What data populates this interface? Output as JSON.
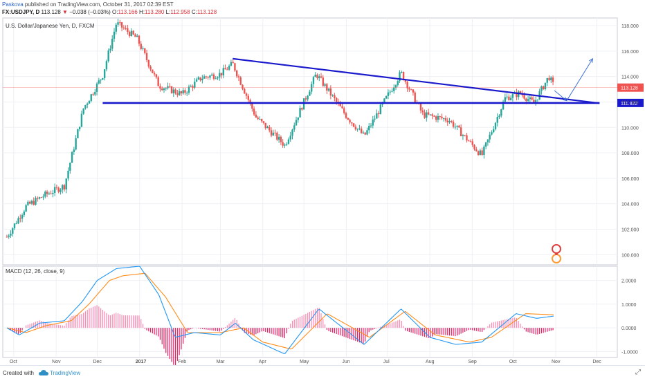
{
  "header": {
    "author": "Paskova",
    "published": "published on TradingView.com, October 31, 2017 02:39 EST",
    "symbol_line": "FX:USDJPY, D",
    "last_price": "113.128",
    "change_arrow": "▼",
    "change": "−0.038 (−0.03%)",
    "open_label": "O:",
    "open": "113.166",
    "high_label": "H:",
    "high": "113.280",
    "low_label": "L:",
    "low": "112.958",
    "close_label": "C:",
    "close": "113.128"
  },
  "footer": {
    "created_with": "Created with",
    "brand": "TradingView",
    "expand_icon": "expand-icon"
  },
  "colors": {
    "up": "#26a69a",
    "down": "#ef5350",
    "trendline": "#1a1acc",
    "price_label": "#ef5350",
    "support_label": "#1a1acc",
    "macd_line": "#2196f3",
    "signal_line": "#ff8c1a",
    "hist_up": "#ff86b0",
    "hist_down": "#e91e63"
  },
  "chart_data": [
    {
      "type": "candlestick",
      "title": "U.S. Dollar/Japanese Yen, D, FXCM",
      "ylim": [
        99.2,
        118.6
      ],
      "y_ticks": [
        "118.000",
        "116.000",
        "114.000",
        "112.000",
        "110.000",
        "108.000",
        "106.000",
        "104.000",
        "102.000",
        "100.000"
      ],
      "x_ticks": [
        "Oct",
        "Nov",
        "Dec",
        "2017",
        "Feb",
        "Mar",
        "Apr",
        "May",
        "Jun",
        "Jul",
        "Aug",
        "Sep",
        "Oct",
        "Nov",
        "Dec"
      ],
      "current_price": "113.128",
      "support_level": "111.922",
      "series": [
        {
          "date": "2016-09-26",
          "value": 101.4
        },
        {
          "date": "2016-10-10",
          "value": 103.8
        },
        {
          "date": "2016-10-24",
          "value": 104.7
        },
        {
          "date": "2016-11-07",
          "value": 105.4
        },
        {
          "date": "2016-11-21",
          "value": 111.5
        },
        {
          "date": "2016-12-05",
          "value": 114.1
        },
        {
          "date": "2016-12-15",
          "value": 118.2
        },
        {
          "date": "2016-12-30",
          "value": 117.0
        },
        {
          "date": "2017-01-15",
          "value": 113.3
        },
        {
          "date": "2017-02-01",
          "value": 112.6
        },
        {
          "date": "2017-02-15",
          "value": 113.9
        },
        {
          "date": "2017-03-01",
          "value": 114.2
        },
        {
          "date": "2017-03-10",
          "value": 115.0
        },
        {
          "date": "2017-03-27",
          "value": 110.8
        },
        {
          "date": "2017-04-17",
          "value": 108.6
        },
        {
          "date": "2017-05-10",
          "value": 114.2
        },
        {
          "date": "2017-06-01",
          "value": 110.9
        },
        {
          "date": "2017-06-14",
          "value": 109.3
        },
        {
          "date": "2017-07-11",
          "value": 114.3
        },
        {
          "date": "2017-07-27",
          "value": 111.0
        },
        {
          "date": "2017-08-15",
          "value": 110.6
        },
        {
          "date": "2017-09-08",
          "value": 107.8
        },
        {
          "date": "2017-09-25",
          "value": 112.3
        },
        {
          "date": "2017-10-06",
          "value": 112.7
        },
        {
          "date": "2017-10-16",
          "value": 111.9
        },
        {
          "date": "2017-10-27",
          "value": 114.0
        },
        {
          "date": "2017-10-31",
          "value": 113.13
        }
      ],
      "annotations": {
        "resistance_trendline": [
          {
            "date": "2017-03-10",
            "value": 115.4
          },
          {
            "date": "2017-12-03",
            "value": 111.9
          }
        ],
        "support_line": {
          "from": "2016-12-05",
          "to": "2017-12-03",
          "value": 111.922
        },
        "projection_arrows": [
          {
            "from": {
              "date": "2017-10-31",
              "value": 112.9
            },
            "to": {
              "date": "2017-11-09",
              "value": 112.1
            }
          },
          {
            "from": {
              "date": "2017-11-09",
              "value": 112.1
            },
            "to": {
              "date": "2017-11-28",
              "value": 115.4
            }
          }
        ]
      }
    },
    {
      "type": "line",
      "title": "MACD (12, 26, close, 9)",
      "ylim": [
        -1.25,
        2.6
      ],
      "y_ticks": [
        "2.0000",
        "1.0000",
        "0.0000",
        "-1.0000"
      ],
      "series": [
        {
          "name": "MACD",
          "points": [
            {
              "date": "2016-09-26",
              "value": 0.0
            },
            {
              "date": "2016-10-05",
              "value": -0.3
            },
            {
              "date": "2016-10-20",
              "value": 0.2
            },
            {
              "date": "2016-11-07",
              "value": 0.3
            },
            {
              "date": "2016-11-20",
              "value": 1.1
            },
            {
              "date": "2016-12-01",
              "value": 2.0
            },
            {
              "date": "2016-12-15",
              "value": 2.5
            },
            {
              "date": "2017-01-01",
              "value": 2.6
            },
            {
              "date": "2017-01-15",
              "value": 1.4
            },
            {
              "date": "2017-01-27",
              "value": -0.4
            },
            {
              "date": "2017-02-10",
              "value": -0.2
            },
            {
              "date": "2017-03-01",
              "value": -0.3
            },
            {
              "date": "2017-03-12",
              "value": 0.2
            },
            {
              "date": "2017-03-25",
              "value": -0.5
            },
            {
              "date": "2017-04-17",
              "value": -1.1
            },
            {
              "date": "2017-05-12",
              "value": 0.8
            },
            {
              "date": "2017-06-14",
              "value": -0.7
            },
            {
              "date": "2017-07-11",
              "value": 0.8
            },
            {
              "date": "2017-08-01",
              "value": -0.4
            },
            {
              "date": "2017-08-20",
              "value": -0.7
            },
            {
              "date": "2017-09-08",
              "value": -0.6
            },
            {
              "date": "2017-10-03",
              "value": 0.6
            },
            {
              "date": "2017-10-18",
              "value": 0.4
            },
            {
              "date": "2017-10-31",
              "value": 0.5
            }
          ]
        },
        {
          "name": "Signal",
          "points": [
            {
              "date": "2016-09-26",
              "value": 0.0
            },
            {
              "date": "2016-10-10",
              "value": -0.2
            },
            {
              "date": "2016-10-25",
              "value": 0.1
            },
            {
              "date": "2016-11-12",
              "value": 0.3
            },
            {
              "date": "2016-11-25",
              "value": 1.0
            },
            {
              "date": "2016-12-10",
              "value": 2.0
            },
            {
              "date": "2016-12-20",
              "value": 2.2
            },
            {
              "date": "2017-01-05",
              "value": 2.3
            },
            {
              "date": "2017-01-20",
              "value": 1.3
            },
            {
              "date": "2017-02-05",
              "value": -0.2
            },
            {
              "date": "2017-03-01",
              "value": -0.2
            },
            {
              "date": "2017-03-18",
              "value": 0.0
            },
            {
              "date": "2017-04-01",
              "value": -0.6
            },
            {
              "date": "2017-04-22",
              "value": -0.9
            },
            {
              "date": "2017-05-18",
              "value": 0.6
            },
            {
              "date": "2017-06-18",
              "value": -0.4
            },
            {
              "date": "2017-07-14",
              "value": 0.7
            },
            {
              "date": "2017-08-05",
              "value": -0.3
            },
            {
              "date": "2017-08-30",
              "value": -0.6
            },
            {
              "date": "2017-09-15",
              "value": -0.4
            },
            {
              "date": "2017-10-10",
              "value": 0.6
            },
            {
              "date": "2017-10-31",
              "value": 0.55
            }
          ]
        }
      ]
    }
  ]
}
